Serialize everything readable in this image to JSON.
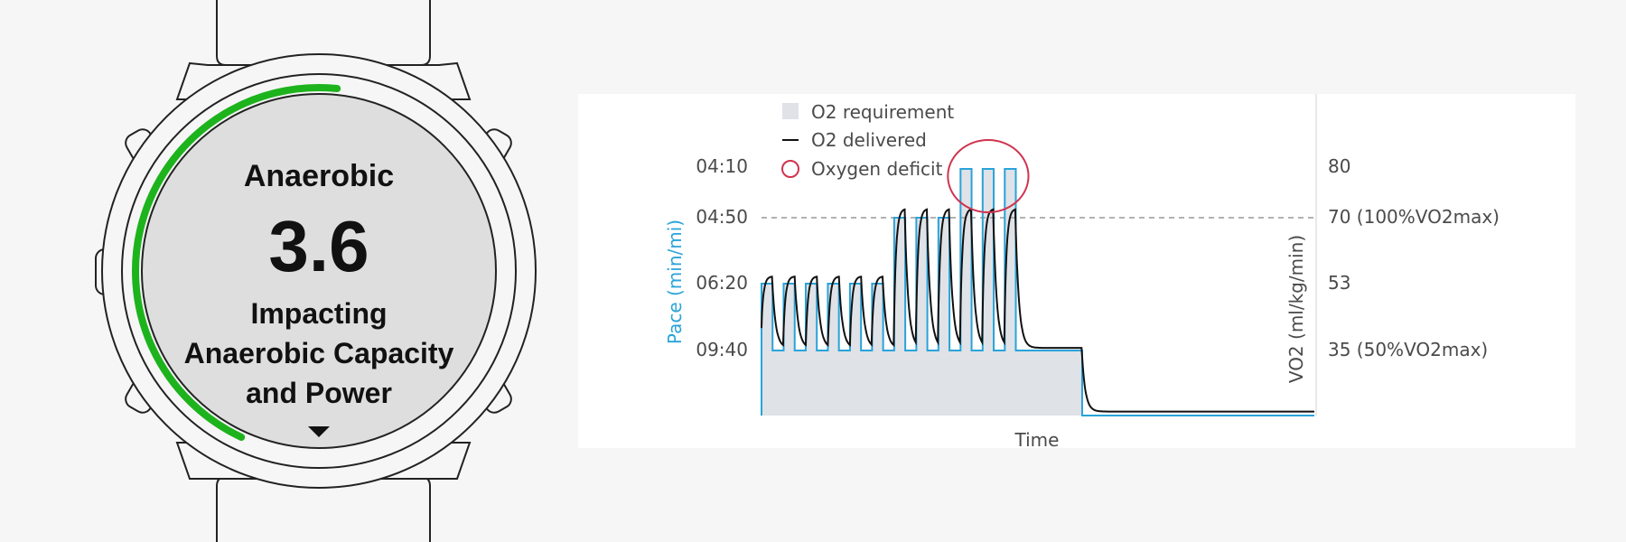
{
  "watch": {
    "title": "Anaerobic",
    "value": "3.6",
    "subtitle_lines": [
      "Impacting",
      "Anaerobic Capacity",
      "and Power"
    ],
    "progress_fraction": 0.72,
    "progress_color": "#1db31d",
    "next_icon": "triangle-down-icon"
  },
  "chart_data": {
    "type": "line",
    "xlabel": "Time",
    "ylabel_left": "Pace (min/mi)",
    "ylabel_right": "VO2 (ml/kg/min)",
    "y_left_ticks": [
      "04:10",
      "04:50",
      "06:20",
      "09:40"
    ],
    "y_right_ticks": [
      "80",
      "70 (100%VO2max)",
      "53",
      "35 (50%VO2max)"
    ],
    "y_right_values": [
      80,
      70,
      53,
      35
    ],
    "ylim": [
      18,
      84
    ],
    "reference_line": 70,
    "legend": {
      "requirement": "O2 requirement",
      "delivered": "O2 delivered",
      "deficit": "Oxygen deficit"
    },
    "colors": {
      "requirement_fill": "#dfe2e7",
      "requirement_line": "#29a3d9",
      "delivered_line": "#111111",
      "deficit": "#d0334f",
      "axis_text": "#29a3d9",
      "grid": "#999999"
    },
    "x_range": [
      0,
      100
    ],
    "series": [
      {
        "name": "O2 requirement",
        "intervals": [
          {
            "start": 0,
            "end": 2,
            "value": 53
          },
          {
            "start": 2,
            "end": 4,
            "value": 35
          },
          {
            "start": 4,
            "end": 6,
            "value": 53
          },
          {
            "start": 6,
            "end": 8,
            "value": 35
          },
          {
            "start": 8,
            "end": 10,
            "value": 53
          },
          {
            "start": 10,
            "end": 12,
            "value": 35
          },
          {
            "start": 12,
            "end": 14,
            "value": 53
          },
          {
            "start": 14,
            "end": 16,
            "value": 35
          },
          {
            "start": 16,
            "end": 18,
            "value": 53
          },
          {
            "start": 18,
            "end": 20,
            "value": 35
          },
          {
            "start": 20,
            "end": 22,
            "value": 53
          },
          {
            "start": 22,
            "end": 24,
            "value": 35
          },
          {
            "start": 24,
            "end": 26,
            "value": 70
          },
          {
            "start": 26,
            "end": 28,
            "value": 35
          },
          {
            "start": 28,
            "end": 30,
            "value": 70
          },
          {
            "start": 30,
            "end": 32,
            "value": 35
          },
          {
            "start": 32,
            "end": 34,
            "value": 70
          },
          {
            "start": 34,
            "end": 36,
            "value": 35
          },
          {
            "start": 36,
            "end": 38,
            "value": 80
          },
          {
            "start": 38,
            "end": 40,
            "value": 35
          },
          {
            "start": 40,
            "end": 42,
            "value": 80
          },
          {
            "start": 42,
            "end": 44,
            "value": 35
          },
          {
            "start": 44,
            "end": 46,
            "value": 80
          },
          {
            "start": 46,
            "end": 58,
            "value": 35
          },
          {
            "start": 58,
            "end": 100,
            "value": 18
          }
        ]
      },
      {
        "name": "O2 delivered",
        "curve": "approaches each requirement level with a lag; peaks clipped at 70; decays to 19 after t=58"
      }
    ]
  }
}
